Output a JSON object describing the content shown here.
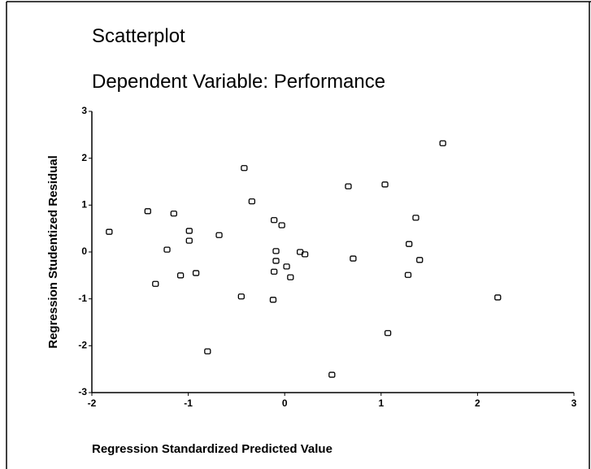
{
  "chart_data": {
    "type": "scatter",
    "title": "Scatterplot",
    "subtitle": "Dependent Variable: Performance",
    "x_label": "Regression Standardized Predicted Value",
    "y_label": "Regression Studentized Residual",
    "xlim": [
      -2,
      3
    ],
    "ylim": [
      -3,
      3
    ],
    "xticks": [
      -2,
      -1,
      0,
      1,
      2,
      3
    ],
    "yticks": [
      -3,
      -2,
      -1,
      0,
      1,
      2,
      3
    ],
    "grid": false,
    "color": "#000000",
    "x": [
      -1.82,
      -1.42,
      -1.15,
      -1.22,
      -1.34,
      -1.08,
      -0.99,
      -0.99,
      -0.92,
      -0.68,
      -0.8,
      -0.42,
      -0.34,
      -0.45,
      -0.11,
      -0.03,
      -0.09,
      -0.09,
      -0.11,
      0.02,
      0.06,
      -0.12,
      0.16,
      0.21,
      0.66,
      0.71,
      1.04,
      0.49,
      1.07,
      1.29,
      1.36,
      1.4,
      1.28,
      1.64,
      2.21
    ],
    "values": [
      0.43,
      0.87,
      0.82,
      0.05,
      -0.68,
      -0.5,
      0.45,
      0.24,
      -0.45,
      0.36,
      -2.12,
      1.79,
      1.08,
      -0.95,
      0.68,
      0.57,
      0.02,
      -0.19,
      -0.42,
      -0.31,
      -0.54,
      -1.02,
      0.0,
      -0.05,
      1.4,
      -0.14,
      1.44,
      -2.62,
      -1.73,
      0.17,
      0.73,
      -0.17,
      -0.49,
      2.32,
      -0.97
    ]
  }
}
